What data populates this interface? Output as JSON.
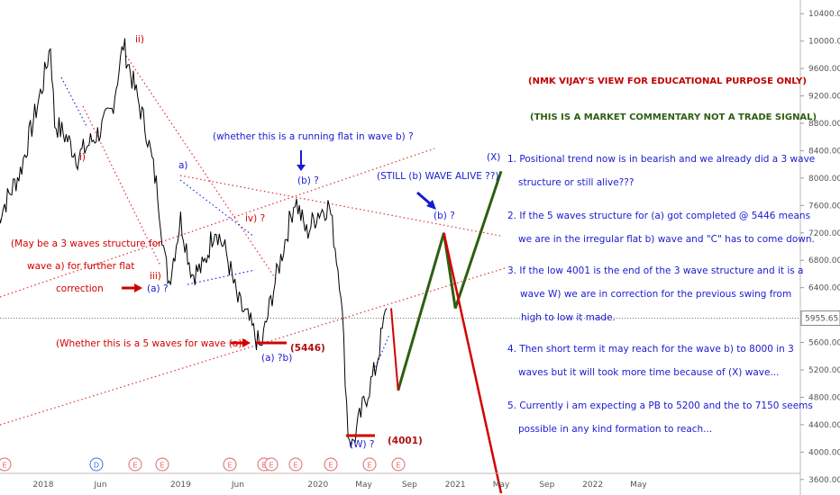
{
  "chart_data": {
    "type": "line",
    "ylim": [
      3400,
      10600
    ],
    "y_ticks": [
      3600,
      4000,
      4400,
      4800,
      5200,
      5600,
      6000,
      6400,
      6800,
      7200,
      7600,
      8000,
      8400,
      8800,
      9200,
      9600,
      10000,
      10400
    ],
    "y_tick_labels": [
      "3600.00",
      "4000.00",
      "4400.00",
      "4800.00",
      "5200.00",
      "5600.00",
      "6000.00",
      "6400.00",
      "6800.00",
      "7200.00",
      "7600.00",
      "8000.00",
      "8400.00",
      "8800.00",
      "9200.00",
      "9600.00",
      "10000.00",
      "10400.00"
    ],
    "x_tick_labels": [
      "2018",
      "Jun",
      "2019",
      "Jun",
      "2020",
      "May",
      "Sep",
      "2021",
      "May",
      "Sep",
      "2022",
      "May"
    ],
    "x_tick_dates": [
      "2018-01",
      "2018-06",
      "2019-01",
      "2019-06",
      "2020-01",
      "2020-05",
      "2020-09",
      "2021-01",
      "2021-05",
      "2021-09",
      "2022-01",
      "2022-05"
    ],
    "last_price": "5955.65",
    "price_series": {
      "name": "",
      "x": [
        "2017-09",
        "2017-11",
        "2018-01",
        "2018-01-20",
        "2018-02",
        "2018-03",
        "2018-04",
        "2018-05",
        "2018-06",
        "2018-07",
        "2018-08",
        "2018-09",
        "2018-10",
        "2018-11",
        "2018-11-20",
        "2018-12",
        "2019-01",
        "2019-02",
        "2019-03",
        "2019-04",
        "2019-05",
        "2019-06",
        "2019-07",
        "2019-08",
        "2019-09",
        "2019-10",
        "2019-11",
        "2019-12",
        "2020-01",
        "2020-02",
        "2020-03",
        "2020-03-20",
        "2020-04",
        "2020-05",
        "2020-06",
        "2020-07"
      ],
      "values": [
        7400,
        8100,
        9400,
        9950,
        8800,
        8600,
        8300,
        8500,
        8700,
        9000,
        9950,
        9300,
        8700,
        7800,
        6800,
        6500,
        7400,
        6600,
        6700,
        7300,
        6900,
        6200,
        5900,
        5500,
        6300,
        7000,
        7700,
        7200,
        7500,
        7600,
        6400,
        4300,
        4100,
        4700,
        5200,
        6100
      ]
    },
    "projection_green": {
      "x": [
        "2020-08",
        "2020-12",
        "2021-01",
        "2021-05"
      ],
      "values": [
        4900,
        7200,
        6100,
        8100
      ]
    },
    "projection_red": {
      "x": [
        "2020-12",
        "2021-05"
      ],
      "values": [
        7200,
        3400
      ]
    },
    "annotations": {
      "wave_i": "i)",
      "wave_ii": "ii)",
      "wave_iii": "iii)",
      "wave_iv": "iv) ?",
      "wave_a_small": "a)",
      "wave_b_small": "b)",
      "running_flat": "(whether this is a running flat in wave b) ?",
      "b_label": "(b) ?",
      "still_b": "(STILL (b) WAVE ALIVE ??)",
      "b_label_2": "(b) ?",
      "x_label": "(X)",
      "a_label": "(a) ?",
      "a_label_2": "(a) ?b)",
      "w_label": "(W) ?",
      "level_5446": "(5446)",
      "level_4001": "(4001)",
      "three_waves_1": "(May be a 3 waves structure for",
      "three_waves_2": "wave a) for further flat",
      "three_waves_3": "correction",
      "five_waves": "(Whether this is a 5 waves for wave (a)?"
    },
    "events": [
      "E",
      "D",
      "E",
      "E",
      "E",
      "E",
      "E",
      "E",
      "E",
      "E",
      "E"
    ],
    "colors": {
      "price": "#000000",
      "green": "#2e5e12",
      "red": "#d40000",
      "blue": "#1a1ad0",
      "dotted_red": "#e03030",
      "dotted_blue": "#2424e6",
      "dark_red": "#b01010"
    }
  },
  "header": {
    "line1": "(NMK VIJAY'S VIEW FOR EDUCATIONAL PURPOSE ONLY)",
    "line2": "(THIS IS A MARKET COMMENTARY NOT A TRADE SIGNAL)"
  },
  "notes": [
    {
      "a": "1. Positional trend now is in bearish and we already did a 3 wave",
      "b": "structure  or still alive???"
    },
    {
      "a": "2. If the 5 waves structure for (a) got completed @ 5446 means",
      "b": "we are in the irregular flat b) wave and \"C\" has to come down."
    },
    {
      "a": "3. If the low 4001 is the end of the 3 wave structure and it is a",
      "b": "wave W) we are in correction for the previous swing from",
      "c": "high to low it made."
    },
    {
      "a": "4. Then short term it may reach for the wave b) to 8000 in 3",
      "b": "waves but it will took more time because of (X) wave..."
    },
    {
      "a": "5. Currently i am expecting a PB to 5200 and the to 7150 seems",
      "b": "possible in any kind formation to reach..."
    }
  ]
}
